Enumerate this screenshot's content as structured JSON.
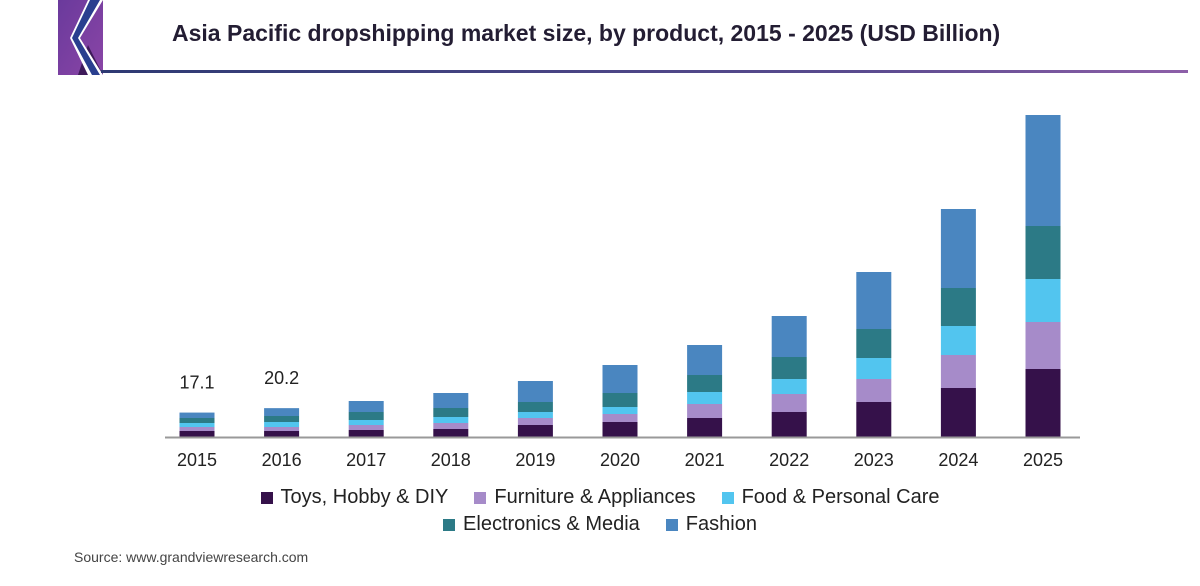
{
  "chart_data": {
    "type": "bar",
    "stacked": true,
    "title": "Asia Pacific dropshipping market size, by product, 2015 - 2025 (USD Billion)",
    "xlabel": "",
    "ylabel": "",
    "ylim": [
      0,
      230
    ],
    "grid": false,
    "legend_position": "bottom",
    "categories": [
      "2015",
      "2016",
      "2017",
      "2018",
      "2019",
      "2020",
      "2021",
      "2022",
      "2023",
      "2024",
      "2025"
    ],
    "series": [
      {
        "name": "Toys, Hobby & DIY",
        "color": "#35114a",
        "values": [
          4.2,
          4.2,
          4.9,
          5.6,
          8.4,
          10.5,
          13.3,
          17.5,
          24.5,
          34.3,
          47.6
        ]
      },
      {
        "name": "Furniture & Appliances",
        "color": "#a68bc9",
        "values": [
          2.8,
          2.8,
          3.5,
          4.2,
          4.9,
          5.6,
          9.8,
          12.6,
          16.1,
          23.1,
          32.9
        ]
      },
      {
        "name": "Food & Personal Care",
        "color": "#52c5ef",
        "values": [
          2.8,
          3.5,
          3.5,
          4.2,
          4.2,
          4.9,
          8.4,
          10.5,
          14.7,
          20.3,
          30.1
        ]
      },
      {
        "name": "Electronics & Media",
        "color": "#2c7a86",
        "values": [
          3.5,
          4.2,
          5.6,
          6.3,
          7.0,
          9.8,
          11.9,
          15.4,
          20.3,
          26.6,
          37.1
        ]
      },
      {
        "name": "Fashion",
        "color": "#4a86c0",
        "values": [
          3.8,
          5.5,
          7.7,
          10.5,
          14.7,
          19.6,
          21.0,
          28.7,
          39.9,
          55.3,
          77.7
        ]
      }
    ],
    "data_labels": [
      {
        "category": "2015",
        "text": "17.1"
      },
      {
        "category": "2016",
        "text": "20.2"
      }
    ]
  },
  "source": "Source: www.grandviewresearch.com",
  "colors": {
    "axis": "#999999",
    "title": "#231d33"
  }
}
